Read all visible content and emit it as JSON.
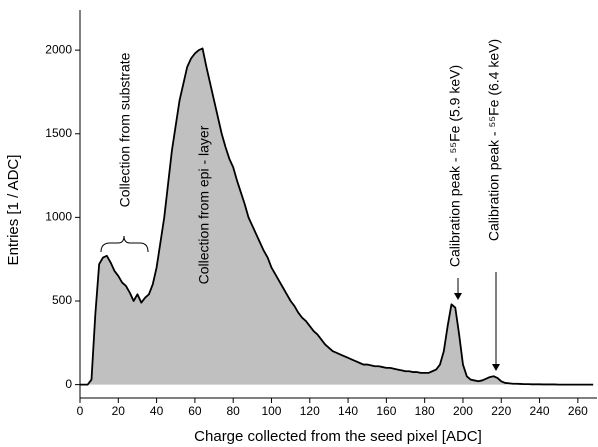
{
  "chart_data": {
    "type": "area",
    "xlabel": "Charge collected from the seed pixel [ADC]",
    "ylabel": "Entries [1 / ADC]",
    "annotations": [
      "Collection from substrate",
      "Collection from epi - layer",
      "Calibration peak - ⁵⁵Fe (5.9 keV)",
      "Calibration peak - ⁵⁵Fe (6.4 keV)"
    ],
    "color": "#c0c0c0",
    "line_color": "#000000",
    "xlim": [
      0,
      270
    ],
    "ylim": [
      -80,
      2240
    ],
    "xticks": [
      0,
      20,
      40,
      60,
      80,
      100,
      120,
      140,
      160,
      180,
      200,
      220,
      240,
      260
    ],
    "yticks": [
      0,
      500,
      1000,
      1500,
      2000
    ],
    "x": [
      0,
      2,
      4,
      6,
      8,
      10,
      12,
      14,
      16,
      18,
      20,
      22,
      24,
      26,
      28,
      30,
      32,
      34,
      36,
      38,
      40,
      42,
      44,
      46,
      48,
      50,
      52,
      54,
      56,
      58,
      60,
      62,
      64,
      66,
      68,
      70,
      72,
      74,
      76,
      78,
      80,
      82,
      84,
      86,
      88,
      90,
      92,
      94,
      96,
      98,
      100,
      102,
      104,
      106,
      108,
      110,
      112,
      114,
      116,
      118,
      120,
      122,
      124,
      126,
      128,
      130,
      132,
      134,
      136,
      138,
      140,
      142,
      144,
      146,
      148,
      150,
      152,
      154,
      156,
      158,
      160,
      162,
      164,
      166,
      168,
      170,
      172,
      174,
      176,
      178,
      180,
      182,
      184,
      186,
      188,
      190,
      192,
      194,
      196,
      198,
      200,
      202,
      204,
      206,
      208,
      210,
      212,
      214,
      216,
      218,
      220,
      222,
      224,
      226,
      228,
      230,
      232,
      234,
      236,
      238,
      240,
      242,
      244,
      246,
      248,
      250,
      252,
      254,
      256,
      258,
      260,
      262,
      264,
      266,
      268
    ],
    "values": [
      0,
      0,
      0,
      30,
      420,
      720,
      760,
      770,
      730,
      680,
      650,
      610,
      590,
      550,
      500,
      540,
      490,
      520,
      540,
      600,
      700,
      850,
      1000,
      1200,
      1400,
      1550,
      1700,
      1800,
      1900,
      1950,
      1980,
      2000,
      2010,
      1900,
      1800,
      1700,
      1600,
      1500,
      1420,
      1350,
      1300,
      1220,
      1150,
      1080,
      1000,
      950,
      900,
      850,
      800,
      760,
      700,
      660,
      620,
      580,
      540,
      500,
      470,
      430,
      400,
      380,
      350,
      320,
      300,
      270,
      240,
      220,
      200,
      190,
      180,
      170,
      160,
      150,
      140,
      130,
      120,
      120,
      115,
      110,
      110,
      105,
      100,
      100,
      95,
      90,
      85,
      80,
      80,
      75,
      75,
      70,
      70,
      70,
      80,
      90,
      120,
      200,
      350,
      480,
      460,
      300,
      120,
      50,
      30,
      25,
      20,
      25,
      35,
      45,
      50,
      40,
      20,
      10,
      8,
      5,
      5,
      4,
      3,
      3,
      2,
      2,
      2,
      1,
      1,
      1,
      1,
      0,
      0,
      0,
      0,
      0,
      0,
      0,
      0,
      0,
      0
    ]
  }
}
